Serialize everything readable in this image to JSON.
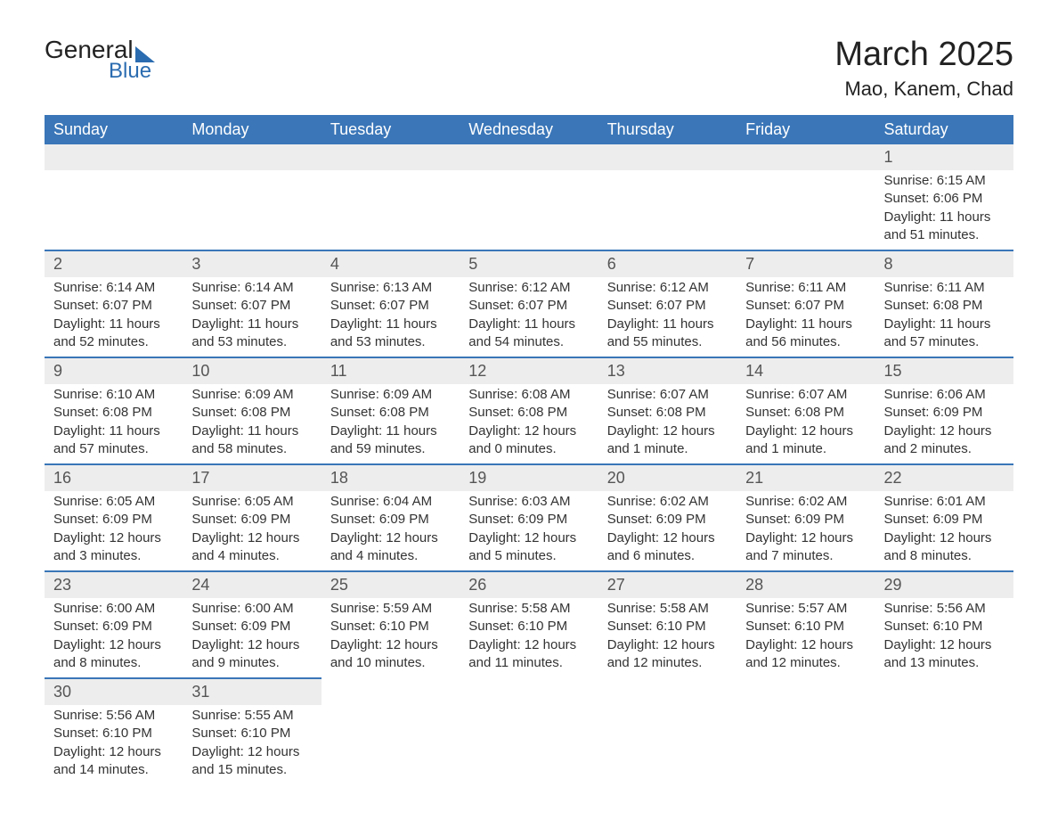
{
  "logo": {
    "text_general": "General",
    "text_blue": "Blue"
  },
  "title": {
    "month": "March 2025",
    "location": "Mao, Kanem, Chad"
  },
  "colors": {
    "header_bg": "#3a76b8",
    "header_text": "#ffffff",
    "daynum_bg": "#ededed",
    "daynum_text": "#555555",
    "border": "#3a76b8",
    "logo_blue": "#2b6cb0",
    "body_text": "#333333"
  },
  "typography": {
    "month_title_fontsize": 38,
    "location_fontsize": 22,
    "header_fontsize": 18,
    "daynum_fontsize": 18,
    "body_fontsize": 15
  },
  "day_labels": [
    "Sunday",
    "Monday",
    "Tuesday",
    "Wednesday",
    "Thursday",
    "Friday",
    "Saturday"
  ],
  "weeks": [
    [
      {
        "empty": true
      },
      {
        "empty": true
      },
      {
        "empty": true
      },
      {
        "empty": true
      },
      {
        "empty": true
      },
      {
        "empty": true
      },
      {
        "num": "1",
        "sunrise": "Sunrise: 6:15 AM",
        "sunset": "Sunset: 6:06 PM",
        "daylight": "Daylight: 11 hours and 51 minutes."
      }
    ],
    [
      {
        "num": "2",
        "sunrise": "Sunrise: 6:14 AM",
        "sunset": "Sunset: 6:07 PM",
        "daylight": "Daylight: 11 hours and 52 minutes."
      },
      {
        "num": "3",
        "sunrise": "Sunrise: 6:14 AM",
        "sunset": "Sunset: 6:07 PM",
        "daylight": "Daylight: 11 hours and 53 minutes."
      },
      {
        "num": "4",
        "sunrise": "Sunrise: 6:13 AM",
        "sunset": "Sunset: 6:07 PM",
        "daylight": "Daylight: 11 hours and 53 minutes."
      },
      {
        "num": "5",
        "sunrise": "Sunrise: 6:12 AM",
        "sunset": "Sunset: 6:07 PM",
        "daylight": "Daylight: 11 hours and 54 minutes."
      },
      {
        "num": "6",
        "sunrise": "Sunrise: 6:12 AM",
        "sunset": "Sunset: 6:07 PM",
        "daylight": "Daylight: 11 hours and 55 minutes."
      },
      {
        "num": "7",
        "sunrise": "Sunrise: 6:11 AM",
        "sunset": "Sunset: 6:07 PM",
        "daylight": "Daylight: 11 hours and 56 minutes."
      },
      {
        "num": "8",
        "sunrise": "Sunrise: 6:11 AM",
        "sunset": "Sunset: 6:08 PM",
        "daylight": "Daylight: 11 hours and 57 minutes."
      }
    ],
    [
      {
        "num": "9",
        "sunrise": "Sunrise: 6:10 AM",
        "sunset": "Sunset: 6:08 PM",
        "daylight": "Daylight: 11 hours and 57 minutes."
      },
      {
        "num": "10",
        "sunrise": "Sunrise: 6:09 AM",
        "sunset": "Sunset: 6:08 PM",
        "daylight": "Daylight: 11 hours and 58 minutes."
      },
      {
        "num": "11",
        "sunrise": "Sunrise: 6:09 AM",
        "sunset": "Sunset: 6:08 PM",
        "daylight": "Daylight: 11 hours and 59 minutes."
      },
      {
        "num": "12",
        "sunrise": "Sunrise: 6:08 AM",
        "sunset": "Sunset: 6:08 PM",
        "daylight": "Daylight: 12 hours and 0 minutes."
      },
      {
        "num": "13",
        "sunrise": "Sunrise: 6:07 AM",
        "sunset": "Sunset: 6:08 PM",
        "daylight": "Daylight: 12 hours and 1 minute."
      },
      {
        "num": "14",
        "sunrise": "Sunrise: 6:07 AM",
        "sunset": "Sunset: 6:08 PM",
        "daylight": "Daylight: 12 hours and 1 minute."
      },
      {
        "num": "15",
        "sunrise": "Sunrise: 6:06 AM",
        "sunset": "Sunset: 6:09 PM",
        "daylight": "Daylight: 12 hours and 2 minutes."
      }
    ],
    [
      {
        "num": "16",
        "sunrise": "Sunrise: 6:05 AM",
        "sunset": "Sunset: 6:09 PM",
        "daylight": "Daylight: 12 hours and 3 minutes."
      },
      {
        "num": "17",
        "sunrise": "Sunrise: 6:05 AM",
        "sunset": "Sunset: 6:09 PM",
        "daylight": "Daylight: 12 hours and 4 minutes."
      },
      {
        "num": "18",
        "sunrise": "Sunrise: 6:04 AM",
        "sunset": "Sunset: 6:09 PM",
        "daylight": "Daylight: 12 hours and 4 minutes."
      },
      {
        "num": "19",
        "sunrise": "Sunrise: 6:03 AM",
        "sunset": "Sunset: 6:09 PM",
        "daylight": "Daylight: 12 hours and 5 minutes."
      },
      {
        "num": "20",
        "sunrise": "Sunrise: 6:02 AM",
        "sunset": "Sunset: 6:09 PM",
        "daylight": "Daylight: 12 hours and 6 minutes."
      },
      {
        "num": "21",
        "sunrise": "Sunrise: 6:02 AM",
        "sunset": "Sunset: 6:09 PM",
        "daylight": "Daylight: 12 hours and 7 minutes."
      },
      {
        "num": "22",
        "sunrise": "Sunrise: 6:01 AM",
        "sunset": "Sunset: 6:09 PM",
        "daylight": "Daylight: 12 hours and 8 minutes."
      }
    ],
    [
      {
        "num": "23",
        "sunrise": "Sunrise: 6:00 AM",
        "sunset": "Sunset: 6:09 PM",
        "daylight": "Daylight: 12 hours and 8 minutes."
      },
      {
        "num": "24",
        "sunrise": "Sunrise: 6:00 AM",
        "sunset": "Sunset: 6:09 PM",
        "daylight": "Daylight: 12 hours and 9 minutes."
      },
      {
        "num": "25",
        "sunrise": "Sunrise: 5:59 AM",
        "sunset": "Sunset: 6:10 PM",
        "daylight": "Daylight: 12 hours and 10 minutes."
      },
      {
        "num": "26",
        "sunrise": "Sunrise: 5:58 AM",
        "sunset": "Sunset: 6:10 PM",
        "daylight": "Daylight: 12 hours and 11 minutes."
      },
      {
        "num": "27",
        "sunrise": "Sunrise: 5:58 AM",
        "sunset": "Sunset: 6:10 PM",
        "daylight": "Daylight: 12 hours and 12 minutes."
      },
      {
        "num": "28",
        "sunrise": "Sunrise: 5:57 AM",
        "sunset": "Sunset: 6:10 PM",
        "daylight": "Daylight: 12 hours and 12 minutes."
      },
      {
        "num": "29",
        "sunrise": "Sunrise: 5:56 AM",
        "sunset": "Sunset: 6:10 PM",
        "daylight": "Daylight: 12 hours and 13 minutes."
      }
    ],
    [
      {
        "num": "30",
        "sunrise": "Sunrise: 5:56 AM",
        "sunset": "Sunset: 6:10 PM",
        "daylight": "Daylight: 12 hours and 14 minutes."
      },
      {
        "num": "31",
        "sunrise": "Sunrise: 5:55 AM",
        "sunset": "Sunset: 6:10 PM",
        "daylight": "Daylight: 12 hours and 15 minutes."
      },
      {
        "empty": true
      },
      {
        "empty": true
      },
      {
        "empty": true
      },
      {
        "empty": true
      },
      {
        "empty": true
      }
    ]
  ]
}
